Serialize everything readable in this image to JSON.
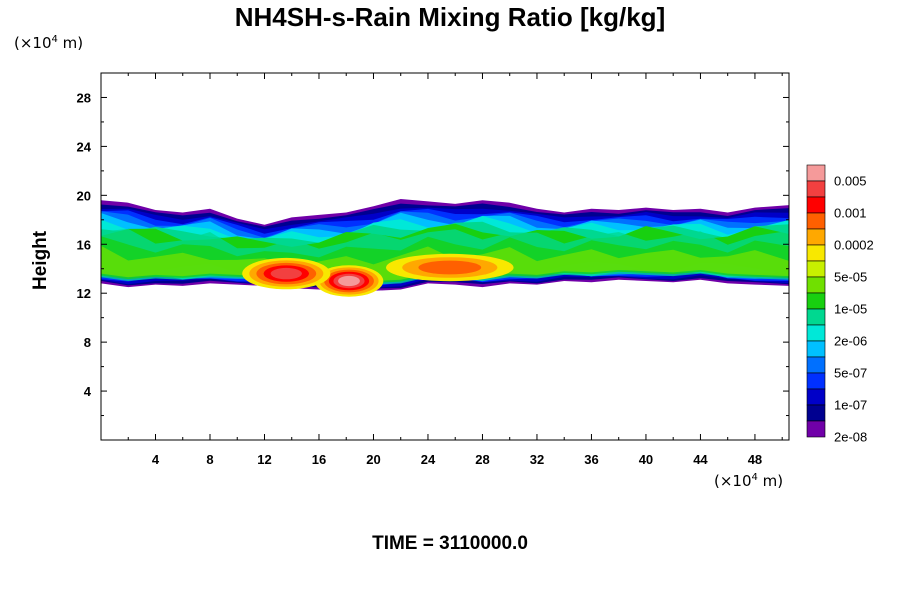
{
  "chart_data": {
    "type": "heatmap",
    "title": "NH4SH-s-Rain Mixing Ratio [kg/kg]",
    "ylabel": "Height",
    "x_unit": {
      "prefix": "(×10",
      "exp": "4",
      "suffix": " m)"
    },
    "y_unit": {
      "prefix": "(×10",
      "exp": "4",
      "suffix": " m)"
    },
    "footer": "TIME = 3110000.0",
    "xlim": [
      0,
      50.5
    ],
    "ylim": [
      0,
      30
    ],
    "x_ticks": [
      "4",
      "8",
      "12",
      "16",
      "20",
      "24",
      "28",
      "32",
      "36",
      "40",
      "44",
      "48"
    ],
    "y_ticks": [
      "4",
      "8",
      "12",
      "16",
      "20",
      "24",
      "28"
    ],
    "legend": {
      "labels": [
        "0.005",
        "0.001",
        "0.0002",
        "5e-05",
        "1e-05",
        "2e-06",
        "5e-07",
        "1e-07",
        "2e-08"
      ],
      "colors": [
        "#f59a9a",
        "#f24040",
        "#ff0000",
        "#ff6000",
        "#ffa800",
        "#f8e800",
        "#c8f000",
        "#70e000",
        "#18d010",
        "#00d890",
        "#00e8d8",
        "#00c0ff",
        "#0070ff",
        "#0030ff",
        "#0000c8",
        "#000090",
        "#7000a8"
      ]
    },
    "band": {
      "x": [
        0,
        2,
        4,
        6,
        8,
        10,
        12,
        14,
        16,
        18,
        20,
        22,
        24,
        26,
        28,
        30,
        32,
        34,
        36,
        38,
        40,
        42,
        44,
        46,
        48,
        50.5
      ],
      "top": [
        19.6,
        19.4,
        18.8,
        18.6,
        18.9,
        18.1,
        17.6,
        18.2,
        18.4,
        18.6,
        19.1,
        19.7,
        19.5,
        19.3,
        19.6,
        19.4,
        18.9,
        18.6,
        18.9,
        18.8,
        19.0,
        18.8,
        18.9,
        18.6,
        19.0,
        19.2
      ],
      "bottom": [
        12.8,
        12.5,
        12.7,
        12.6,
        12.8,
        12.7,
        12.6,
        12.4,
        12.3,
        12.1,
        12.2,
        12.3,
        12.8,
        12.7,
        12.5,
        12.8,
        12.7,
        13.0,
        12.9,
        13.1,
        13.0,
        12.9,
        13.1,
        12.8,
        12.7,
        12.6
      ]
    },
    "core_regions": [
      {
        "label": "0.005",
        "x_center": 18.2,
        "y_center": 13.0,
        "x_half": 1.4,
        "y_half": 0.8
      },
      {
        "label": "0.001",
        "x_center": 13.6,
        "y_center": 13.6,
        "x_half": 1.8,
        "y_half": 0.8
      },
      {
        "label": "0.0002",
        "x_center": 25.6,
        "y_center": 14.1,
        "x_half": 2.6,
        "y_half": 0.7
      }
    ]
  }
}
